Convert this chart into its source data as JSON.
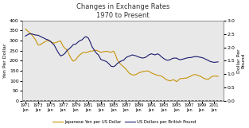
{
  "title_line1": "Changes in Exchange Rates",
  "title_line2": "1970 to Present",
  "ylabel_left": "Yen Per Dollar",
  "ylabel_right": "Dollar Per\nPound",
  "ylim_left": [
    0,
    400
  ],
  "ylim_right": [
    0.0,
    3.0
  ],
  "yticks_left": [
    0,
    50,
    100,
    150,
    200,
    250,
    300,
    350,
    400
  ],
  "yticks_right": [
    0.0,
    0.5,
    1.0,
    1.5,
    2.0,
    2.5,
    3.0
  ],
  "xtick_years": [
    1971,
    1973,
    1975,
    1977,
    1979,
    1981,
    1983,
    1985,
    1987,
    1989,
    1991,
    1993,
    1995,
    1997,
    1999,
    2001
  ],
  "legend_yen": "Japanese Yen per US Dollar",
  "legend_pound": "US Dollars per British Pound",
  "yen_color": "#c8920a",
  "pound_color": "#1a1a6e",
  "fig_bg": "#ffffff",
  "plot_bg": "#e8e8e8",
  "yen_data_x": [
    1971.0,
    1971.3,
    1971.6,
    1972.0,
    1972.3,
    1972.6,
    1973.0,
    1973.3,
    1973.6,
    1974.0,
    1974.3,
    1974.6,
    1975.0,
    1975.3,
    1975.6,
    1976.0,
    1976.3,
    1976.6,
    1977.0,
    1977.3,
    1977.6,
    1978.0,
    1978.3,
    1978.6,
    1979.0,
    1979.3,
    1979.6,
    1980.0,
    1980.3,
    1980.6,
    1981.0,
    1981.3,
    1981.6,
    1982.0,
    1982.3,
    1982.6,
    1983.0,
    1983.3,
    1983.6,
    1984.0,
    1984.3,
    1984.6,
    1985.0,
    1985.3,
    1985.6,
    1986.0,
    1986.3,
    1986.6,
    1987.0,
    1987.3,
    1987.6,
    1988.0,
    1988.3,
    1988.6,
    1989.0,
    1989.3,
    1989.6,
    1990.0,
    1990.3,
    1990.6,
    1991.0,
    1991.3,
    1991.6,
    1992.0,
    1992.3,
    1992.6,
    1993.0,
    1993.3,
    1993.6,
    1994.0,
    1994.3,
    1994.6,
    1995.0,
    1995.3,
    1995.6,
    1996.0,
    1996.3,
    1996.6,
    1997.0,
    1997.3,
    1997.6,
    1998.0,
    1998.3,
    1998.6,
    1999.0,
    1999.3,
    1999.6,
    2000.0,
    2000.3,
    2000.6,
    2001.0,
    2001.3,
    2001.6
  ],
  "yen_data_y": [
    357,
    350,
    342,
    330,
    318,
    305,
    280,
    278,
    285,
    292,
    298,
    300,
    296,
    290,
    288,
    292,
    296,
    298,
    272,
    262,
    255,
    228,
    210,
    198,
    205,
    218,
    228,
    238,
    242,
    240,
    244,
    248,
    248,
    252,
    252,
    248,
    242,
    244,
    246,
    247,
    244,
    242,
    248,
    232,
    205,
    188,
    178,
    170,
    158,
    146,
    136,
    130,
    130,
    132,
    140,
    143,
    146,
    148,
    150,
    148,
    140,
    136,
    132,
    128,
    126,
    124,
    116,
    108,
    104,
    100,
    104,
    106,
    96,
    104,
    112,
    112,
    114,
    114,
    120,
    124,
    130,
    132,
    128,
    126,
    120,
    114,
    110,
    108,
    114,
    122,
    124,
    124,
    122
  ],
  "pound_data_x": [
    1971.0,
    1971.3,
    1971.6,
    1972.0,
    1972.3,
    1972.6,
    1973.0,
    1973.3,
    1973.6,
    1974.0,
    1974.3,
    1974.6,
    1975.0,
    1975.3,
    1975.6,
    1976.0,
    1976.3,
    1976.6,
    1977.0,
    1977.3,
    1977.6,
    1978.0,
    1978.3,
    1978.6,
    1979.0,
    1979.3,
    1979.6,
    1980.0,
    1980.3,
    1980.6,
    1981.0,
    1981.3,
    1981.6,
    1982.0,
    1982.3,
    1982.6,
    1983.0,
    1983.3,
    1983.6,
    1984.0,
    1984.3,
    1984.6,
    1985.0,
    1985.3,
    1985.6,
    1986.0,
    1986.3,
    1986.6,
    1987.0,
    1987.3,
    1987.6,
    1988.0,
    1988.3,
    1988.6,
    1989.0,
    1989.3,
    1989.6,
    1990.0,
    1990.3,
    1990.6,
    1991.0,
    1991.3,
    1991.6,
    1992.0,
    1992.3,
    1992.6,
    1993.0,
    1993.3,
    1993.6,
    1994.0,
    1994.3,
    1994.6,
    1995.0,
    1995.3,
    1995.6,
    1996.0,
    1996.3,
    1996.6,
    1997.0,
    1997.3,
    1997.6,
    1998.0,
    1998.3,
    1998.6,
    1999.0,
    1999.3,
    1999.6,
    2000.0,
    2000.3,
    2000.6,
    2001.0,
    2001.3,
    2001.6
  ],
  "pound_data_y": [
    2.42,
    2.46,
    2.5,
    2.5,
    2.48,
    2.46,
    2.45,
    2.42,
    2.38,
    2.34,
    2.3,
    2.28,
    2.22,
    2.15,
    2.08,
    1.9,
    1.78,
    1.68,
    1.72,
    1.78,
    1.88,
    1.95,
    2.02,
    2.1,
    2.12,
    2.18,
    2.24,
    2.28,
    2.35,
    2.4,
    2.35,
    2.2,
    2.02,
    1.88,
    1.78,
    1.72,
    1.55,
    1.52,
    1.5,
    1.45,
    1.38,
    1.3,
    1.28,
    1.32,
    1.4,
    1.46,
    1.5,
    1.52,
    1.62,
    1.66,
    1.68,
    1.72,
    1.7,
    1.68,
    1.64,
    1.62,
    1.6,
    1.62,
    1.66,
    1.72,
    1.76,
    1.74,
    1.72,
    1.76,
    1.72,
    1.65,
    1.58,
    1.54,
    1.52,
    1.54,
    1.58,
    1.6,
    1.6,
    1.56,
    1.54,
    1.56,
    1.58,
    1.6,
    1.62,
    1.62,
    1.64,
    1.66,
    1.65,
    1.64,
    1.62,
    1.6,
    1.56,
    1.52,
    1.48,
    1.46,
    1.44,
    1.45,
    1.46
  ]
}
